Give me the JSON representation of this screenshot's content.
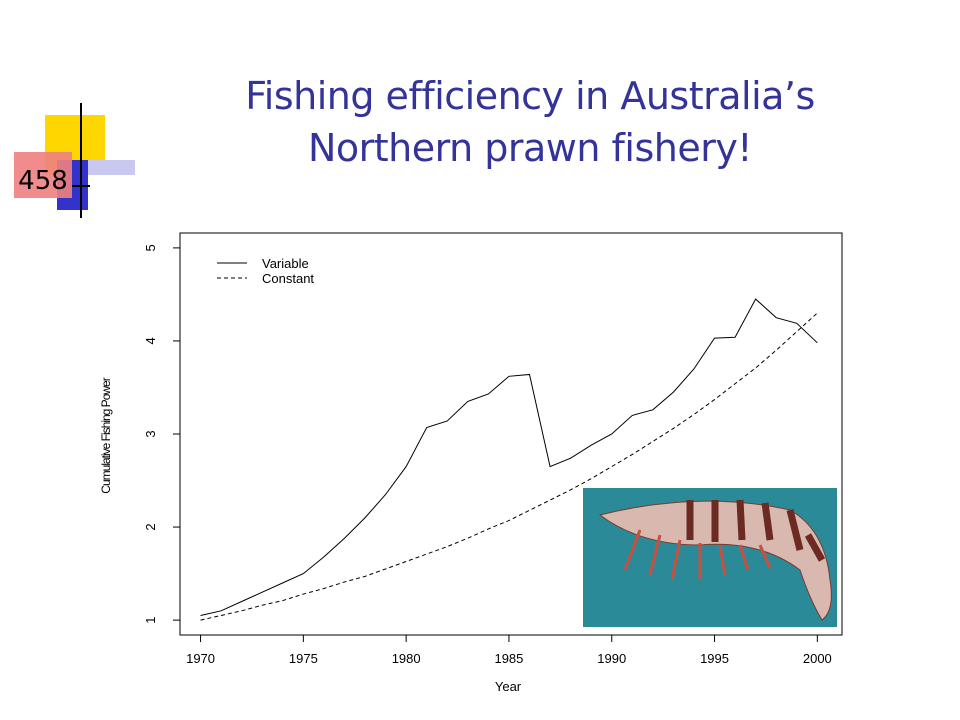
{
  "slide_number": "458",
  "chart_data": {
    "type": "line",
    "title": "Fishing efficiency in Australia’s Northern prawn fishery!",
    "x_label": "Year",
    "y_label": "Cumulative Fishing Power",
    "x": [
      1970,
      1971,
      1972,
      1973,
      1974,
      1975,
      1976,
      1977,
      1978,
      1979,
      1980,
      1981,
      1982,
      1983,
      1984,
      1985,
      1986,
      1987,
      1988,
      1989,
      1990,
      1991,
      1992,
      1993,
      1994,
      1995,
      1996,
      1997,
      1998,
      1999,
      2000
    ],
    "series": [
      {
        "name": "Variable",
        "color": "#000000",
        "dash": "solid",
        "values": [
          1.05,
          1.1,
          1.2,
          1.3,
          1.4,
          1.5,
          1.68,
          1.88,
          2.1,
          2.35,
          2.65,
          3.07,
          3.14,
          3.35,
          3.43,
          3.62,
          3.64,
          2.65,
          2.74,
          2.88,
          3.0,
          3.2,
          3.26,
          3.45,
          3.7,
          4.03,
          4.04,
          4.45,
          4.25,
          4.19,
          3.98
        ]
      },
      {
        "name": "Constant",
        "color": "#000000",
        "dash": "dashed",
        "values": [
          1.0,
          1.05,
          1.1,
          1.16,
          1.21,
          1.28,
          1.34,
          1.41,
          1.47,
          1.55,
          1.63,
          1.71,
          1.79,
          1.88,
          1.98,
          2.07,
          2.18,
          2.29,
          2.4,
          2.52,
          2.65,
          2.78,
          2.92,
          3.06,
          3.21,
          3.37,
          3.54,
          3.71,
          3.9,
          4.1,
          4.3
        ]
      }
    ],
    "xlim": [
      1969,
      2001.2
    ],
    "ylim": [
      0.84,
      5.16
    ],
    "xticks": [
      1970,
      1975,
      1980,
      1985,
      1990,
      1995,
      2000
    ],
    "yticks": [
      1,
      2,
      3,
      4,
      5
    ],
    "legend": "upper-left",
    "grid": false
  }
}
